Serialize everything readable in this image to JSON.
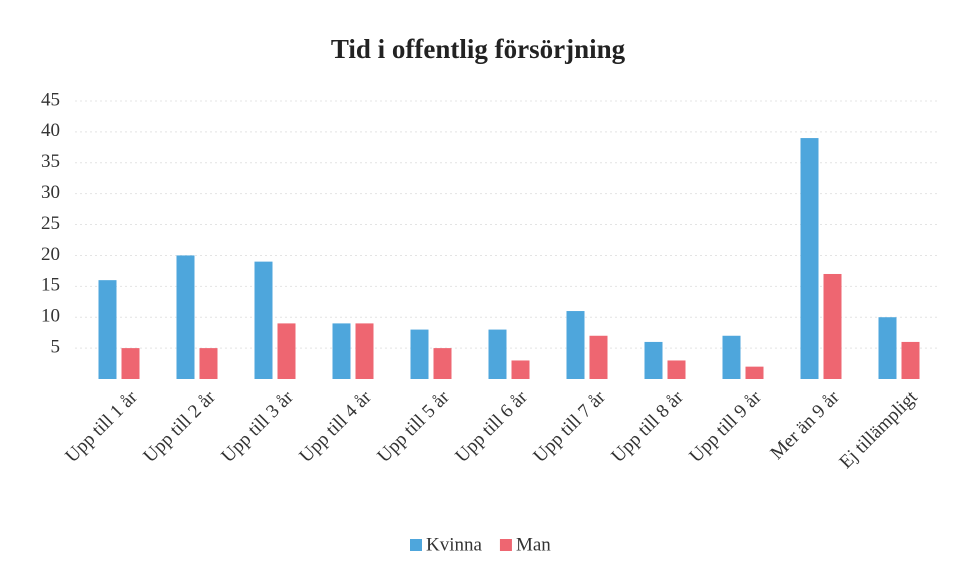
{
  "chart_data": {
    "type": "bar",
    "title": "Tid i offentlig försörjning",
    "categories": [
      "Upp till 1 år",
      "Upp till 2 år",
      "Upp till 3 år",
      "Upp till 4 år",
      "Upp till 5 år",
      "Upp till 6 år",
      "Upp till 7 år",
      "Upp till 8 år",
      "Upp till 9 år",
      "Mer än 9 år",
      "Ej tillämpligt"
    ],
    "series": [
      {
        "name": "Kvinna",
        "color": "#4ea6dc",
        "values": [
          16,
          20,
          19,
          9,
          8,
          8,
          11,
          6,
          7,
          39,
          10
        ]
      },
      {
        "name": "Man",
        "color": "#ee6671",
        "values": [
          5,
          5,
          9,
          9,
          5,
          3,
          7,
          3,
          2,
          17,
          6
        ]
      }
    ],
    "ylim": [
      0,
      45
    ],
    "yticks": [
      5,
      10,
      15,
      20,
      25,
      30,
      35,
      40,
      45
    ],
    "grid": true,
    "legend": "bottom"
  }
}
